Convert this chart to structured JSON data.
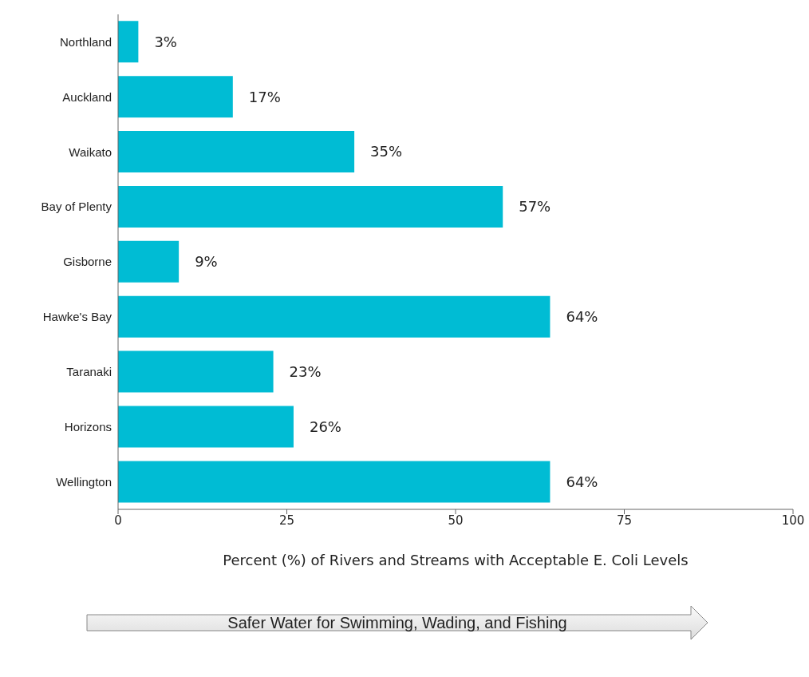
{
  "chart_data": {
    "type": "bar",
    "orientation": "horizontal",
    "xlabel": "Percent (%) of Rivers and Streams with Acceptable E. Coli Levels",
    "categories": [
      "Northland",
      "Auckland",
      "Waikato",
      "Bay of Plenty",
      "Gisborne",
      "Hawke's Bay",
      "Taranaki",
      "Horizons",
      "Wellington"
    ],
    "values": [
      3,
      17,
      35,
      57,
      9,
      64,
      23,
      26,
      64
    ],
    "value_labels": [
      "3%",
      "17%",
      "35%",
      "57%",
      "9%",
      "64%",
      "23%",
      "26%",
      "64%"
    ],
    "color": "#00bcd4",
    "xlim": [
      0,
      100
    ],
    "xticks": [
      0,
      25,
      50,
      75,
      100
    ],
    "annotations": [
      "Safer Water for Swimming, Wading, and Fishing"
    ]
  }
}
